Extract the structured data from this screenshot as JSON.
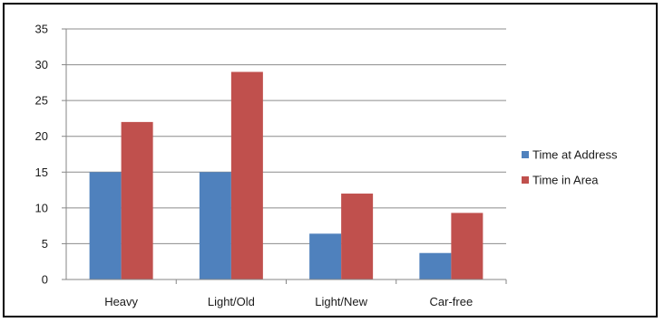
{
  "chart_data": {
    "type": "bar",
    "title": "",
    "xlabel": "",
    "ylabel": "",
    "categories": [
      "Heavy",
      "Light/Old",
      "Light/New",
      "Car-free"
    ],
    "series": [
      {
        "name": "Time at Address",
        "values": [
          15,
          15,
          6.4,
          3.7
        ],
        "color": "#4f81bd"
      },
      {
        "name": "Time in Area",
        "values": [
          22,
          29,
          12,
          9.3
        ],
        "color": "#c0504d"
      }
    ],
    "ylim": [
      0,
      35
    ],
    "yticks": [
      "0",
      "5",
      "10",
      "15",
      "20",
      "25",
      "30",
      "35"
    ],
    "ytick_values": [
      0,
      5,
      10,
      15,
      20,
      25,
      30,
      35
    ],
    "grid": true,
    "legend_position": "right",
    "gridline_color": "#8c8c8c",
    "axis_color": "#868686"
  }
}
